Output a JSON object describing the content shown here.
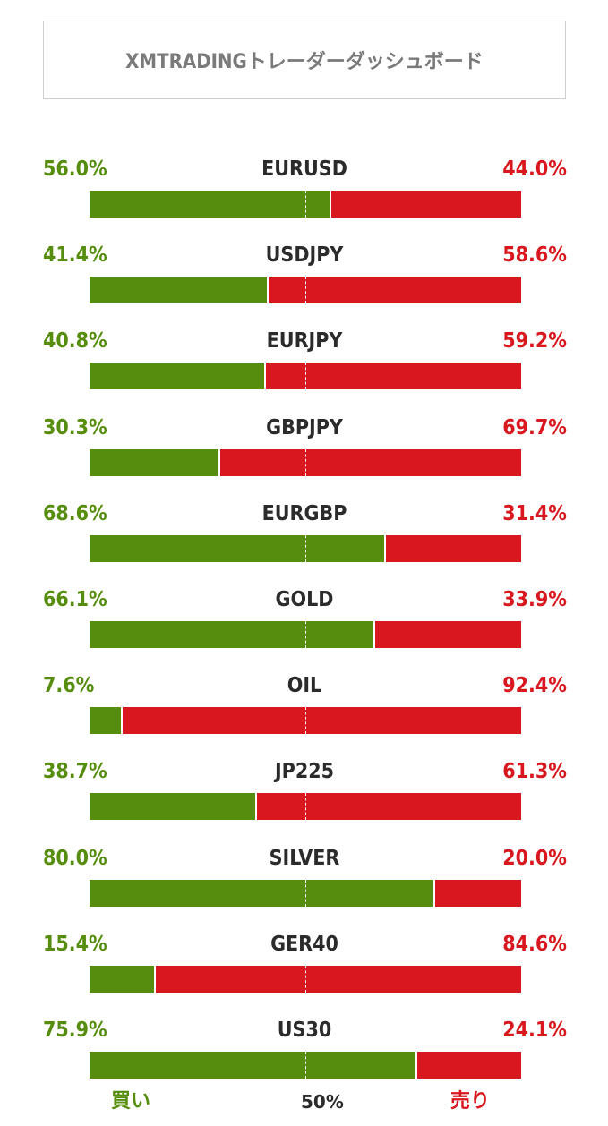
{
  "title": "XMTRADINGトレーダーダッシュボード",
  "legend": {
    "buy": "買い",
    "mid": "50%",
    "sell": "売り"
  },
  "colors": {
    "buy": "#578d0e",
    "sell": "#d9171f",
    "midline": "#ffffff"
  },
  "chart_data": {
    "type": "bar",
    "orientation": "horizontal-stacked-100",
    "categories": [
      "EURUSD",
      "USDJPY",
      "EURJPY",
      "GBPJPY",
      "EURGBP",
      "GOLD",
      "OIL",
      "JP225",
      "SILVER",
      "GER40",
      "US30"
    ],
    "series": [
      {
        "name": "買い",
        "values": [
          56.0,
          41.4,
          40.8,
          30.3,
          68.6,
          66.1,
          7.6,
          38.7,
          80.0,
          15.4,
          75.9
        ]
      },
      {
        "name": "売り",
        "values": [
          44.0,
          58.6,
          59.2,
          69.7,
          31.4,
          33.9,
          92.4,
          61.3,
          20.0,
          84.6,
          24.1
        ]
      }
    ],
    "buy_labels": [
      "56.0%",
      "41.4%",
      "40.8%",
      "30.3%",
      "68.6%",
      "66.1%",
      "7.6%",
      "38.7%",
      "80.0%",
      "15.4%",
      "75.9%"
    ],
    "sell_labels": [
      "44.0%",
      "58.6%",
      "59.2%",
      "69.7%",
      "31.4%",
      "33.9%",
      "92.4%",
      "61.3%",
      "20.0%",
      "84.6%",
      "24.1%"
    ],
    "reference_line": 50,
    "xlim": [
      0,
      100
    ]
  }
}
